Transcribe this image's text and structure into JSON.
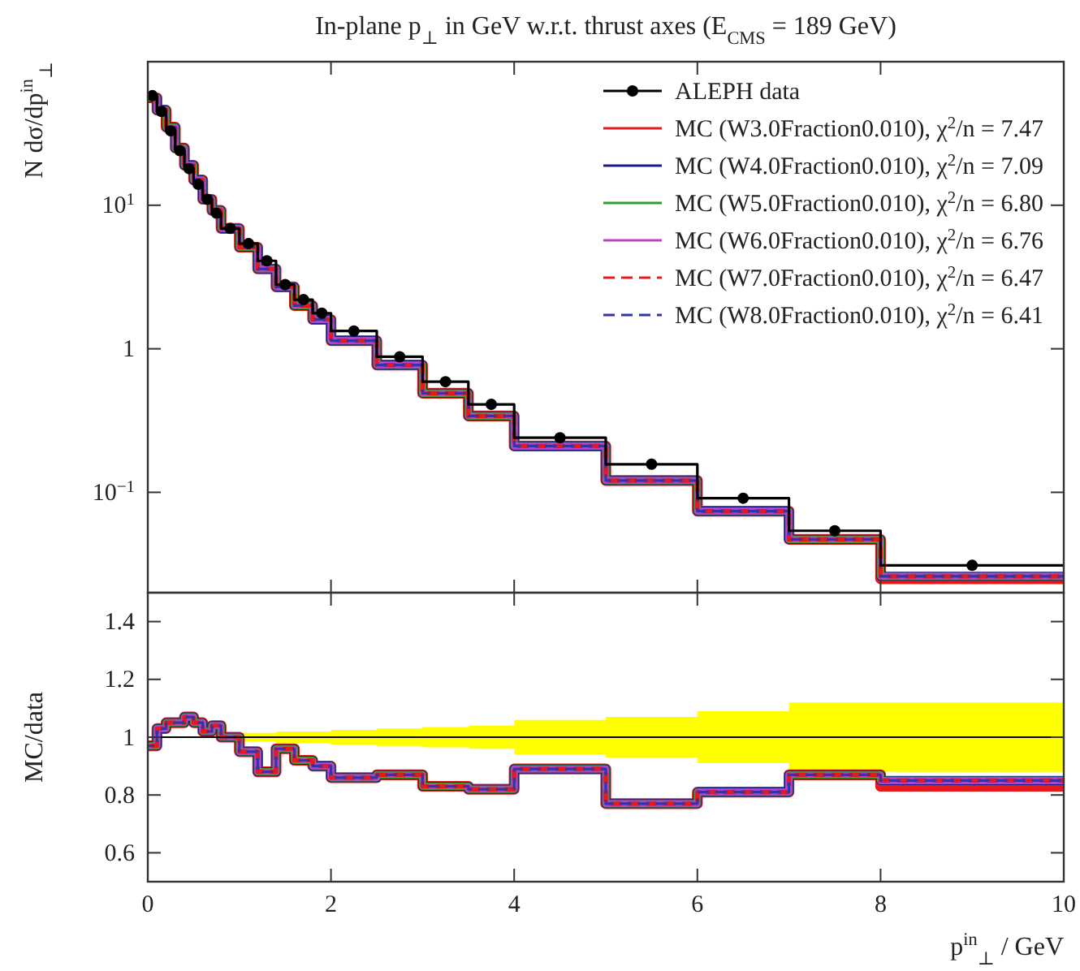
{
  "chart_data": [
    {
      "type": "step",
      "title": "In-plane p$_{⊥}$ in GeV w.r.t. thrust axes (E$_{CMS}$ = 189 GeV)",
      "ylabel": "N dσ/dp$^{in}$$_{⊥}$",
      "log": "y",
      "legend": "top right",
      "tick_labels": "y",
      "x": [
        0,
        0.1,
        0.2,
        0.3,
        0.4,
        0.5,
        0.6,
        0.7,
        0.8,
        1.0,
        1.2,
        1.4,
        1.6,
        1.8,
        2.0,
        2.5,
        3.0,
        3.5,
        4.0,
        5.0,
        6.0,
        7.0,
        8.0,
        10.0
      ],
      "xlim": [
        0,
        10
      ],
      "xticks": [
        0,
        2,
        4,
        6,
        8,
        10
      ],
      "ylim": [
        0.02,
        100
      ],
      "yticks": [
        {
          "value": 0.1,
          "label": "10$^{−1}$"
        },
        1,
        {
          "value": 10,
          "label": "10$^{1}$"
        }
      ],
      "series": [
        {
          "name": "ALEPH data",
          "type": "scatter",
          "color": "#000000",
          "marker": "circle",
          "x": [
            0.05,
            0.15,
            0.25,
            0.35,
            0.45,
            0.55,
            0.65,
            0.75,
            0.9,
            1.1,
            1.3,
            1.5,
            1.7,
            1.9,
            2.25,
            2.75,
            3.25,
            3.75,
            4.5,
            5.5,
            6.5,
            7.5,
            9
          ],
          "values": [
            58,
            45,
            33,
            24,
            18,
            14,
            11,
            8.8,
            6.9,
            5.4,
            4.1,
            2.8,
            2.2,
            1.77,
            1.33,
            0.88,
            0.59,
            0.41,
            0.24,
            0.157,
            0.091,
            0.054,
            0.031
          ]
        },
        {
          "name": "MC (W3.0Fraction0.010), χ$^{2}$/n = 7.47",
          "color": "#e41a1c",
          "values": [
            56,
            46,
            35,
            25,
            19,
            15,
            11,
            9.2,
            6.9,
            5.1,
            3.6,
            2.7,
            2.0,
            1.6,
            1.14,
            0.77,
            0.49,
            0.34,
            0.21,
            0.121,
            0.074,
            0.047,
            0.025,
            0.025
          ]
        },
        {
          "name": "MC (W4.0Fraction0.010), χ$^{2}$/n = 7.09",
          "color": "#1a1a8c",
          "values": [
            56,
            46,
            35,
            25,
            19,
            15,
            11,
            9.2,
            6.9,
            5.1,
            3.6,
            2.7,
            2.0,
            1.6,
            1.14,
            0.77,
            0.49,
            0.34,
            0.21,
            0.121,
            0.074,
            0.047,
            0.026,
            0.026
          ]
        },
        {
          "name": "MC (W5.0Fraction0.010), χ$^{2}$/n = 6.80",
          "color": "#2ca02c",
          "values": [
            56,
            46,
            35,
            25,
            19,
            15,
            11,
            9.2,
            6.9,
            5.1,
            3.6,
            2.7,
            2.0,
            1.6,
            1.14,
            0.77,
            0.49,
            0.34,
            0.21,
            0.121,
            0.074,
            0.047,
            0.026,
            0.026
          ]
        },
        {
          "name": "MC (W6.0Fraction0.010), χ$^{2}$/n = 6.76",
          "color": "#c040c0",
          "values": [
            56,
            46,
            35,
            25,
            19,
            15,
            11,
            9.2,
            6.9,
            5.1,
            3.6,
            2.7,
            2.0,
            1.6,
            1.14,
            0.77,
            0.49,
            0.34,
            0.21,
            0.121,
            0.074,
            0.047,
            0.026,
            0.026
          ]
        },
        {
          "name": "MC (W7.0Fraction0.010), χ$^{2}$/n = 6.47",
          "color": "#e41a1c",
          "line_style": "dashed",
          "values": [
            56,
            46,
            35,
            25,
            19,
            15,
            11,
            9.2,
            6.9,
            5.1,
            3.6,
            2.7,
            2.0,
            1.6,
            1.14,
            0.77,
            0.49,
            0.34,
            0.21,
            0.121,
            0.074,
            0.047,
            0.026,
            0.026
          ]
        },
        {
          "name": "MC (W8.0Fraction0.010), χ$^{2}$/n = 6.41",
          "color": "#3333aa",
          "line_style": "dashed",
          "values": [
            56,
            46,
            35,
            25,
            19,
            15,
            11,
            9.2,
            6.9,
            5.1,
            3.6,
            2.7,
            2.0,
            1.6,
            1.14,
            0.77,
            0.49,
            0.34,
            0.21,
            0.121,
            0.074,
            0.047,
            0.026,
            0.026
          ]
        },
        {
          "color": "#000000",
          "values": [
            58,
            45,
            33,
            24,
            18,
            14,
            11,
            8.8,
            6.9,
            5.4,
            4.1,
            2.8,
            2.2,
            1.77,
            1.33,
            0.88,
            0.59,
            0.41,
            0.24,
            0.157,
            0.091,
            0.054,
            0.031,
            0.031
          ]
        }
      ]
    },
    {
      "type": "step",
      "ylabel": "MC/data",
      "xlabel": "p$^{in}$$_{⊥}$ / GeV",
      "x": [
        0,
        0.1,
        0.2,
        0.3,
        0.4,
        0.5,
        0.6,
        0.7,
        0.8,
        1.0,
        1.2,
        1.4,
        1.6,
        1.8,
        2.0,
        2.5,
        3.0,
        3.5,
        4.0,
        5.0,
        6.0,
        7.0,
        8.0,
        10.0
      ],
      "xlim": [
        0,
        10
      ],
      "xticks": [
        0,
        2,
        4,
        6,
        8,
        10
      ],
      "ylim": [
        0.5,
        1.5
      ],
      "yticks": [
        0.6,
        0.8,
        1,
        1.2,
        1.4
      ],
      "ref_lines": [
        {
          "axis": "y",
          "value": 1,
          "color": "#000000"
        }
      ],
      "series": [
        {
          "color": "#ffff00",
          "values": [
            null,
            null,
            null,
            null,
            null,
            null,
            null,
            null,
            null,
            null,
            null,
            null,
            null,
            null,
            null,
            null,
            null,
            null,
            null,
            null,
            null,
            null,
            null,
            null
          ],
          "lower": [
            null,
            null,
            null,
            null,
            null,
            null,
            null,
            null,
            null,
            0.985,
            0.985,
            0.98,
            0.98,
            0.98,
            0.975,
            0.97,
            0.965,
            0.96,
            0.94,
            0.93,
            0.91,
            0.88,
            0.88,
            0.88
          ],
          "upper": [
            null,
            null,
            null,
            null,
            null,
            null,
            null,
            null,
            null,
            1.015,
            1.015,
            1.02,
            1.02,
            1.02,
            1.025,
            1.03,
            1.035,
            1.04,
            1.06,
            1.07,
            1.09,
            1.12,
            1.12,
            1.12
          ]
        },
        {
          "color": "#e41a1c",
          "values": [
            0.97,
            1.03,
            1.05,
            1.05,
            1.07,
            1.05,
            1.02,
            1.04,
            1.0,
            0.95,
            0.88,
            0.96,
            0.92,
            0.9,
            0.86,
            0.87,
            0.83,
            0.82,
            0.89,
            0.77,
            0.81,
            0.87,
            0.83,
            0.83
          ]
        },
        {
          "color": "#1a1a8c",
          "values": [
            0.97,
            1.03,
            1.05,
            1.05,
            1.07,
            1.05,
            1.02,
            1.04,
            1.0,
            0.95,
            0.88,
            0.96,
            0.92,
            0.9,
            0.86,
            0.87,
            0.83,
            0.82,
            0.89,
            0.77,
            0.81,
            0.87,
            0.85,
            0.85
          ]
        },
        {
          "color": "#2ca02c",
          "values": [
            0.97,
            1.03,
            1.05,
            1.05,
            1.07,
            1.05,
            1.02,
            1.04,
            1.0,
            0.95,
            0.88,
            0.96,
            0.92,
            0.9,
            0.86,
            0.87,
            0.83,
            0.82,
            0.89,
            0.77,
            0.81,
            0.87,
            0.85,
            0.85
          ]
        },
        {
          "color": "#c040c0",
          "values": [
            0.97,
            1.03,
            1.05,
            1.05,
            1.07,
            1.05,
            1.02,
            1.04,
            1.0,
            0.95,
            0.88,
            0.96,
            0.92,
            0.9,
            0.86,
            0.87,
            0.83,
            0.82,
            0.89,
            0.77,
            0.81,
            0.87,
            0.85,
            0.85
          ]
        },
        {
          "color": "#e41a1c",
          "line_style": "dashed",
          "values": [
            0.97,
            1.03,
            1.05,
            1.05,
            1.07,
            1.05,
            1.02,
            1.04,
            1.0,
            0.95,
            0.88,
            0.96,
            0.92,
            0.9,
            0.86,
            0.87,
            0.83,
            0.82,
            0.89,
            0.77,
            0.81,
            0.87,
            0.85,
            0.85
          ]
        },
        {
          "color": "#3333aa",
          "line_style": "dashed",
          "values": [
            0.97,
            1.03,
            1.05,
            1.05,
            1.07,
            1.05,
            1.02,
            1.04,
            1.0,
            0.95,
            0.88,
            0.96,
            0.92,
            0.9,
            0.86,
            0.87,
            0.83,
            0.82,
            0.89,
            0.77,
            0.81,
            0.87,
            0.85,
            0.85
          ]
        }
      ]
    }
  ]
}
